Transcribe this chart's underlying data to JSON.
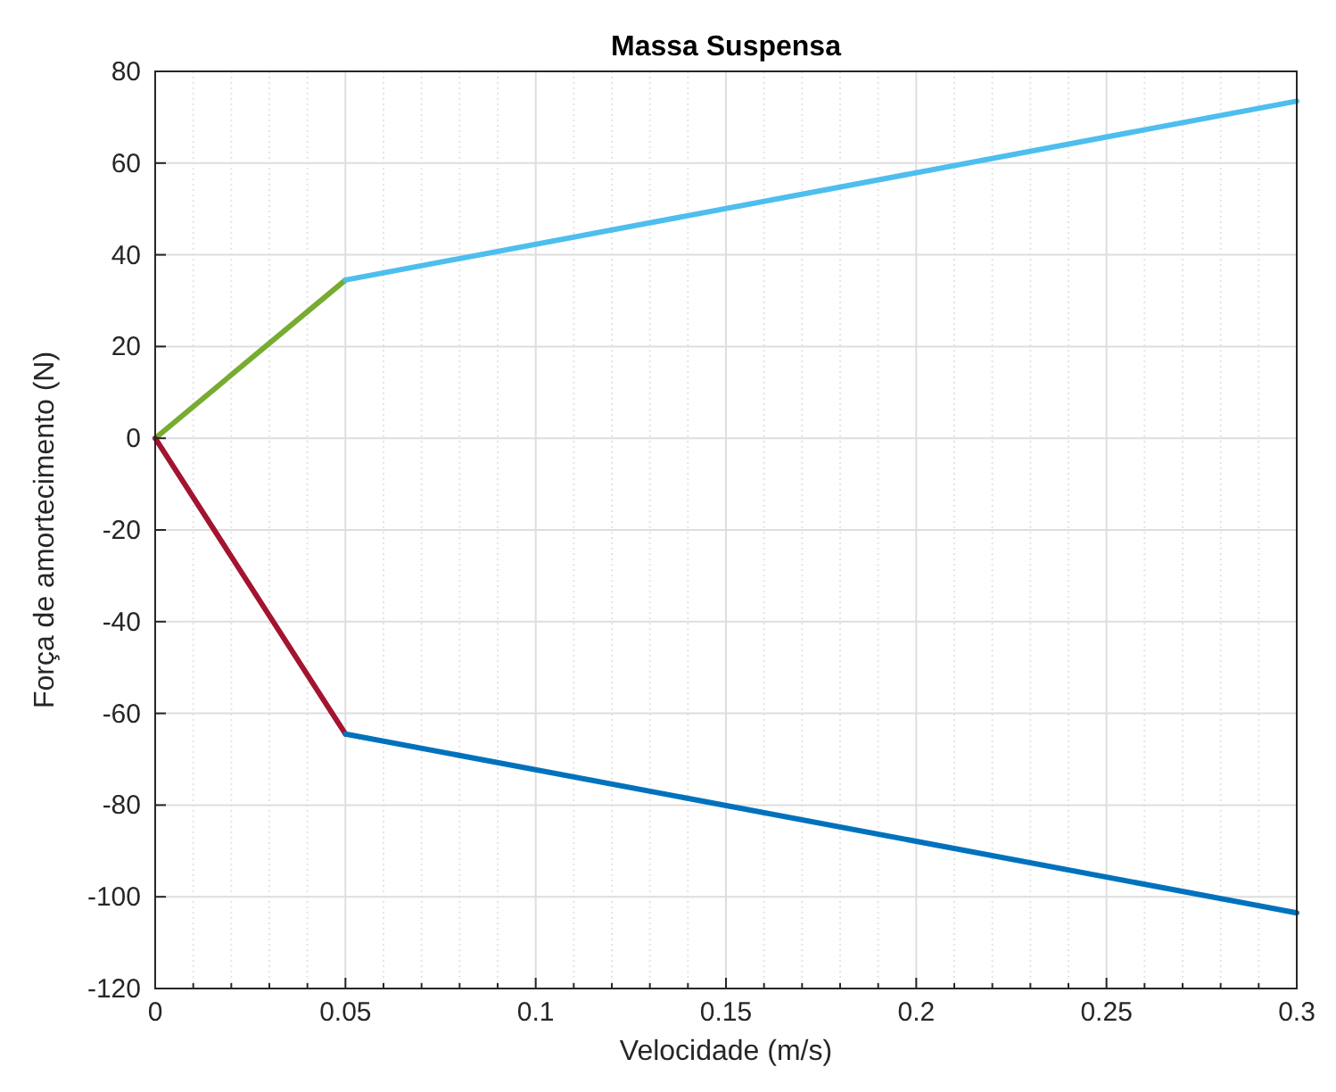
{
  "chart_data": {
    "type": "line",
    "title": "Massa Suspensa",
    "xlabel": "Velocidade (m/s)",
    "ylabel": "Força de amortecimento (N)",
    "xlim": [
      0,
      0.3
    ],
    "ylim": [
      -120,
      80
    ],
    "xticks": [
      0,
      {
        "value": 0.01,
        "label": null
      },
      {
        "value": 0.02,
        "label": null
      },
      {
        "value": 0.03,
        "label": null
      },
      {
        "value": 0.04,
        "label": null
      },
      0.05,
      {
        "value": 0.06,
        "label": null
      },
      {
        "value": 0.07,
        "label": null
      },
      {
        "value": 0.08,
        "label": null
      },
      {
        "value": 0.09,
        "label": null
      },
      0.1,
      {
        "value": 0.11,
        "label": null
      },
      {
        "value": 0.12,
        "label": null
      },
      {
        "value": 0.13,
        "label": null
      },
      {
        "value": 0.14,
        "label": null
      },
      0.15,
      {
        "value": 0.16,
        "label": null
      },
      {
        "value": 0.17,
        "label": null
      },
      {
        "value": 0.18,
        "label": null
      },
      {
        "value": 0.19,
        "label": null
      },
      0.2,
      {
        "value": 0.21,
        "label": null
      },
      {
        "value": 0.22,
        "label": null
      },
      {
        "value": 0.23,
        "label": null
      },
      {
        "value": 0.24,
        "label": null
      },
      0.25,
      {
        "value": 0.26,
        "label": null
      },
      {
        "value": 0.27,
        "label": null
      },
      {
        "value": 0.28,
        "label": null
      },
      {
        "value": 0.29,
        "label": null
      },
      0.3
    ],
    "yticks": [
      -120,
      -100,
      -80,
      -60,
      -40,
      -20,
      0,
      20,
      40,
      60,
      80
    ],
    "grid": true,
    "marker": "none",
    "line_style": "solid",
    "series": [
      {
        "color": "#77ac30",
        "x": [
          0,
          0.05
        ],
        "values": [
          0,
          34.5
        ]
      },
      {
        "color": "#4dbeee",
        "x": [
          0.05,
          0.3
        ],
        "values": [
          34.5,
          73.5
        ]
      },
      {
        "color": "#a2142f",
        "x": [
          0,
          0.05
        ],
        "values": [
          0,
          -64.5
        ]
      },
      {
        "color": "#0072bd",
        "x": [
          0.05,
          0.3
        ],
        "values": [
          -64.5,
          -103.5
        ]
      }
    ]
  }
}
